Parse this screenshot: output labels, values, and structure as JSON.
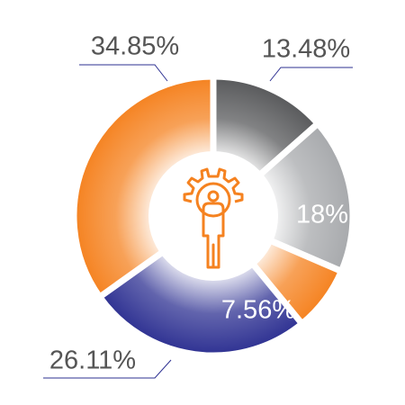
{
  "chart_data": {
    "type": "donut",
    "values": [
      13.48,
      18,
      7.56,
      26.11,
      34.85
    ],
    "value_labels": [
      "13.48%",
      "18%",
      "7.56%",
      "26.11%",
      "34.85%"
    ],
    "colors": [
      "#58595b",
      "#a7a9ac",
      "#f58220",
      "#2e3192",
      "#f58220"
    ]
  }
}
